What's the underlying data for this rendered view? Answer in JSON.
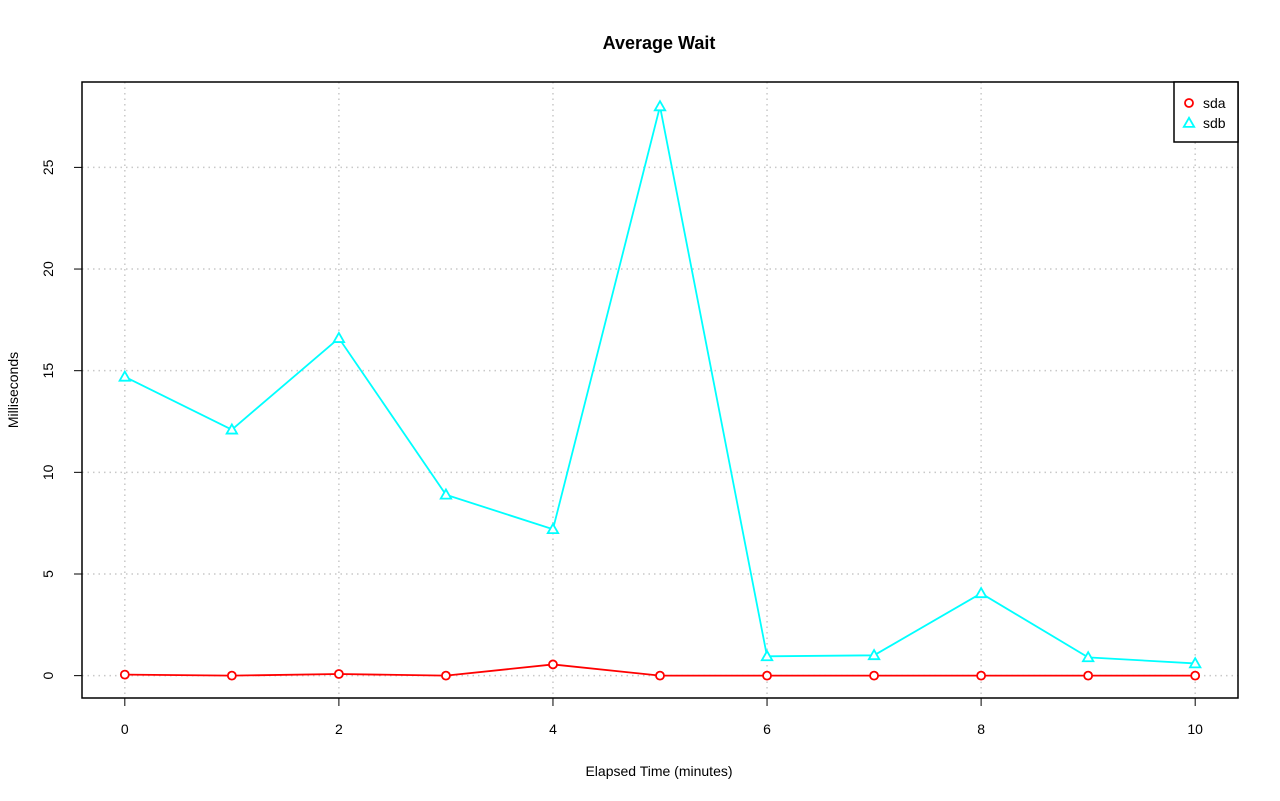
{
  "chart_data": {
    "type": "line",
    "title": "Average Wait",
    "xlabel": "Elapsed Time (minutes)",
    "ylabel": "Milliseconds",
    "x": [
      0,
      1,
      2,
      3,
      4,
      5,
      6,
      7,
      8,
      9,
      10
    ],
    "xlim": [
      -0.4,
      10.4
    ],
    "ylim": [
      -1.1,
      29.2
    ],
    "xticks": [
      0,
      2,
      4,
      6,
      8,
      10
    ],
    "yticks": [
      0,
      5,
      10,
      15,
      20,
      25
    ],
    "grid": true,
    "legend_position": "top-right",
    "series": [
      {
        "name": "sda",
        "color": "#ff0000",
        "marker": "circle",
        "values": [
          0.05,
          0.0,
          0.08,
          0.0,
          0.55,
          0.0,
          0.0,
          0.0,
          0.0,
          0.0,
          0.0
        ]
      },
      {
        "name": "sdb",
        "color": "#00ffff",
        "marker": "triangle",
        "values": [
          14.7,
          12.1,
          16.6,
          8.9,
          7.2,
          28.0,
          0.95,
          1.0,
          4.05,
          0.9,
          0.6
        ]
      }
    ]
  }
}
